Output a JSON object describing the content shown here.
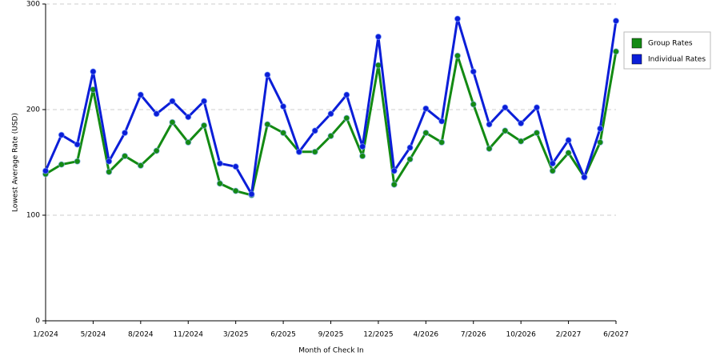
{
  "chart_data": {
    "type": "line",
    "x_label": "Month of Check In",
    "y_label": "Lowest Average Rate (USD)",
    "categories": [
      "1/2024",
      null,
      null,
      "5/2024",
      null,
      null,
      "8/2024",
      null,
      null,
      "11/2024",
      null,
      null,
      "3/2025",
      null,
      null,
      "6/2025",
      null,
      null,
      "9/2025",
      null,
      null,
      "12/2025",
      null,
      null,
      "4/2026",
      null,
      null,
      "7/2026",
      null,
      null,
      "10/2026",
      null,
      null,
      "2/2027",
      null,
      null,
      "6/2027"
    ],
    "series": [
      {
        "name": "Group Rates",
        "color": "#138a13",
        "values": [
          139,
          148,
          151,
          219,
          141,
          156,
          147,
          161,
          188,
          169,
          185,
          130,
          123,
          119,
          186,
          178,
          160,
          160,
          175,
          192,
          156,
          242,
          129,
          153,
          178,
          169,
          251,
          205,
          163,
          180,
          170,
          178,
          142,
          159,
          136,
          169,
          255
        ]
      },
      {
        "name": "Individual Rates",
        "color": "#0b1ed8",
        "values": [
          142,
          176,
          167,
          236,
          151,
          178,
          214,
          196,
          208,
          193,
          208,
          149,
          146,
          120,
          233,
          203,
          160,
          180,
          196,
          214,
          165,
          269,
          142,
          164,
          201,
          189,
          286,
          236,
          186,
          202,
          187,
          202,
          149,
          171,
          136,
          182,
          284
        ]
      }
    ],
    "ylim": [
      0,
      300
    ],
    "yticks": [
      0,
      100,
      200,
      300
    ],
    "grid": true,
    "legend": "right"
  }
}
